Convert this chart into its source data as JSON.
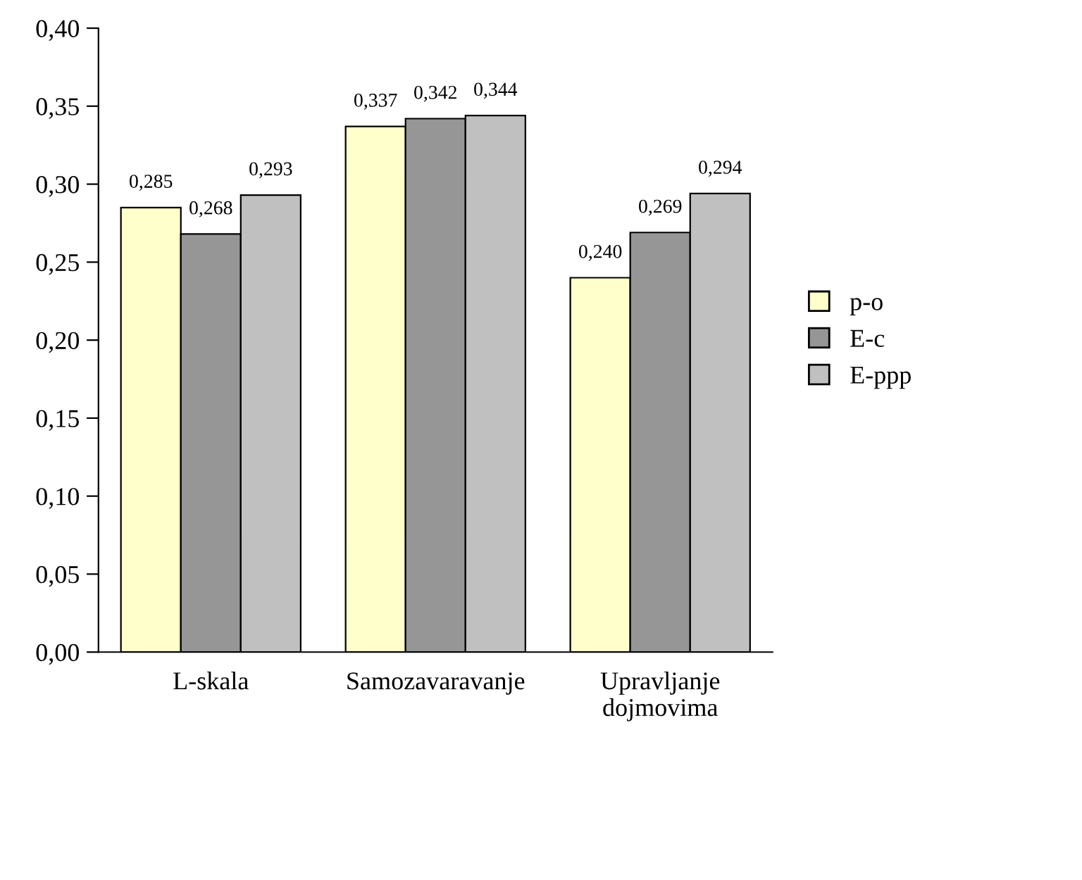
{
  "chart_data": {
    "type": "bar",
    "categories": [
      "L-skala",
      "Samozavaravanje",
      "Upravljanje\ndojmovima"
    ],
    "series": [
      {
        "name": "p-o",
        "color": "#ffffcc",
        "values": [
          0.285,
          0.337,
          0.24
        ],
        "value_labels": [
          "0,285",
          "0,337",
          "0,240"
        ]
      },
      {
        "name": "E-c",
        "color": "#969696",
        "values": [
          0.268,
          0.342,
          0.269
        ],
        "value_labels": [
          "0,268",
          "0,342",
          "0,269"
        ]
      },
      {
        "name": "E-ppp",
        "color": "#c0c0c0",
        "values": [
          0.293,
          0.344,
          0.294
        ],
        "value_labels": [
          "0,293",
          "0,344",
          "0,294"
        ]
      }
    ],
    "ylim": [
      0,
      0.4
    ],
    "yticks": [
      {
        "value": 0,
        "label": "0,00"
      },
      {
        "value": 0.05,
        "label": "0,05"
      },
      {
        "value": 0.1,
        "label": "0,10"
      },
      {
        "value": 0.15,
        "label": "0,15"
      },
      {
        "value": 0.2,
        "label": "0,20"
      },
      {
        "value": 0.25,
        "label": "0,25"
      },
      {
        "value": 0.3,
        "label": "0,30"
      },
      {
        "value": 0.35,
        "label": "0,35"
      },
      {
        "value": 0.4,
        "label": "0,40"
      }
    ],
    "grid": false,
    "legend": "right"
  }
}
